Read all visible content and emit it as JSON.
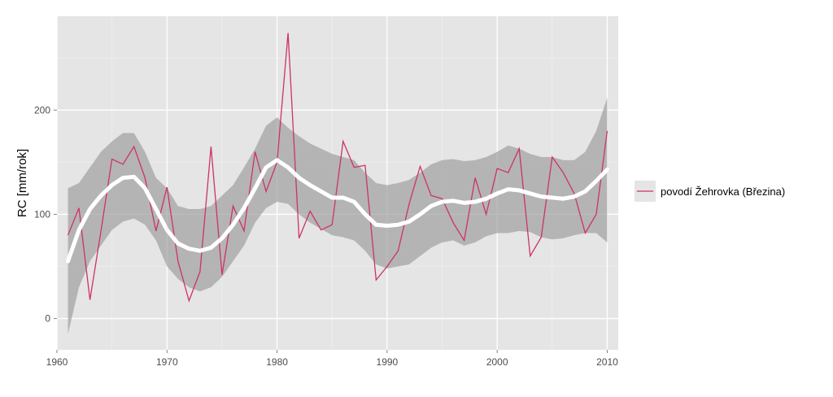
{
  "chart_data": {
    "type": "line",
    "title": "",
    "xlabel": "",
    "ylabel": "RC [mm/rok]",
    "xlim": [
      1960,
      2011
    ],
    "ylim": [
      -30,
      290
    ],
    "x_ticks": [
      1960,
      1970,
      1980,
      1990,
      2000,
      2010
    ],
    "y_ticks": [
      0,
      100,
      200
    ],
    "grid": true,
    "legend_position": "right",
    "series": [
      {
        "name": "povodí Žehrovka (Březina)",
        "color": "#cc3366",
        "x": [
          1961,
          1962,
          1963,
          1964,
          1965,
          1966,
          1967,
          1968,
          1969,
          1970,
          1971,
          1972,
          1973,
          1974,
          1975,
          1976,
          1977,
          1978,
          1979,
          1980,
          1981,
          1982,
          1983,
          1984,
          1985,
          1986,
          1987,
          1988,
          1989,
          1990,
          1991,
          1992,
          1993,
          1994,
          1995,
          1996,
          1997,
          1998,
          1999,
          2000,
          2001,
          2002,
          2003,
          2004,
          2005,
          2006,
          2007,
          2008,
          2009,
          2010
        ],
        "y": [
          80,
          106,
          18,
          84,
          153,
          148,
          165,
          135,
          84,
          126,
          55,
          17,
          45,
          165,
          42,
          108,
          84,
          160,
          122,
          150,
          274,
          77,
          103,
          85,
          90,
          170,
          145,
          147,
          37,
          50,
          65,
          110,
          146,
          118,
          115,
          92,
          75,
          135,
          100,
          144,
          140,
          163,
          60,
          78,
          155,
          140,
          120,
          82,
          100,
          180
        ]
      }
    ],
    "smooth": {
      "color": "#ffffff",
      "x": [
        1961,
        1962,
        1963,
        1964,
        1965,
        1966,
        1967,
        1968,
        1969,
        1970,
        1971,
        1972,
        1973,
        1974,
        1975,
        1976,
        1977,
        1978,
        1979,
        1980,
        1981,
        1982,
        1983,
        1984,
        1985,
        1986,
        1987,
        1988,
        1989,
        1990,
        1991,
        1992,
        1993,
        1994,
        1995,
        1996,
        1997,
        1998,
        1999,
        2000,
        2001,
        2002,
        2003,
        2004,
        2005,
        2006,
        2007,
        2008,
        2009,
        2010
      ],
      "y": [
        55,
        85,
        105,
        118,
        128,
        135,
        136,
        125,
        105,
        85,
        72,
        67,
        65,
        68,
        77,
        90,
        106,
        125,
        145,
        152,
        145,
        135,
        128,
        122,
        116,
        116,
        112,
        100,
        90,
        89,
        90,
        93,
        100,
        108,
        112,
        113,
        111,
        112,
        115,
        120,
        124,
        123,
        120,
        117,
        116,
        115,
        117,
        122,
        132,
        143
      ],
      "band_lower": [
        -15,
        30,
        55,
        70,
        85,
        93,
        96,
        90,
        75,
        50,
        38,
        30,
        26,
        30,
        40,
        55,
        70,
        92,
        106,
        112,
        110,
        100,
        92,
        86,
        80,
        78,
        75,
        65,
        52,
        48,
        50,
        52,
        60,
        68,
        73,
        75,
        70,
        73,
        79,
        82,
        82,
        84,
        83,
        78,
        76,
        77,
        80,
        82,
        82,
        73
      ],
      "band_upper": [
        125,
        130,
        145,
        160,
        170,
        178,
        178,
        160,
        135,
        125,
        108,
        105,
        105,
        108,
        118,
        128,
        145,
        163,
        185,
        193,
        183,
        175,
        168,
        163,
        158,
        155,
        152,
        140,
        130,
        128,
        130,
        133,
        140,
        148,
        152,
        153,
        151,
        152,
        155,
        160,
        166,
        163,
        158,
        155,
        155,
        152,
        152,
        160,
        180,
        212
      ]
    }
  }
}
